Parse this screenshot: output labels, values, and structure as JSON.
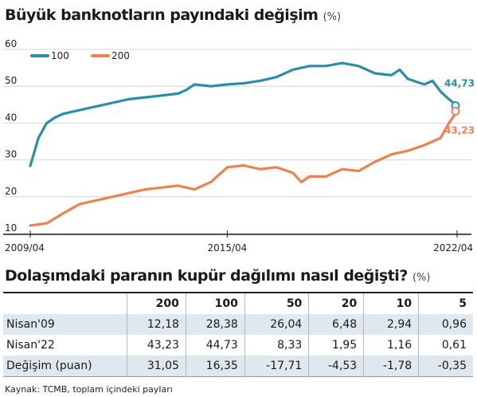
{
  "chart_title": "Büyük banknotların payındaki değişim",
  "chart_unit": "(%)",
  "table_title": "Dolaşımdaki paranın kupür dağılımı nasıl değişti?",
  "table_unit": "(%)",
  "source": "Kaynak: TCMB, toplam içindeki payları",
  "chart_data": {
    "type": "line",
    "title": "Büyük banknotların payındaki değişim",
    "ylim": [
      10,
      60
    ],
    "yticks": [
      "60",
      "50",
      "40",
      "30",
      "20",
      "10"
    ],
    "xlim": [
      "2009/04",
      "2022/04"
    ],
    "xticks": [
      "2009/04",
      "2015/04",
      "2022/04"
    ],
    "legend_placement": "top-left",
    "colors": {
      "100": "#2a8fa5",
      "200": "#f08050"
    },
    "series": [
      {
        "name": "100",
        "end_label": "44,73",
        "points": [
          [
            "2009/04",
            28.4
          ],
          [
            "2009/07",
            36.0
          ],
          [
            "2009/10",
            40.0
          ],
          [
            "2010/01",
            41.5
          ],
          [
            "2010/04",
            42.5
          ],
          [
            "2010/10",
            43.5
          ],
          [
            "2011/04",
            44.5
          ],
          [
            "2011/10",
            45.5
          ],
          [
            "2012/04",
            46.5
          ],
          [
            "2012/10",
            47.0
          ],
          [
            "2013/04",
            47.5
          ],
          [
            "2013/10",
            48.0
          ],
          [
            "2014/01",
            49.0
          ],
          [
            "2014/04",
            50.5
          ],
          [
            "2014/10",
            50.0
          ],
          [
            "2015/04",
            50.5
          ],
          [
            "2015/10",
            50.8
          ],
          [
            "2016/04",
            51.5
          ],
          [
            "2016/10",
            52.5
          ],
          [
            "2017/04",
            54.5
          ],
          [
            "2017/10",
            55.5
          ],
          [
            "2018/04",
            55.5
          ],
          [
            "2018/10",
            56.3
          ],
          [
            "2019/04",
            55.5
          ],
          [
            "2019/10",
            53.5
          ],
          [
            "2020/04",
            53.0
          ],
          [
            "2020/07",
            54.5
          ],
          [
            "2020/10",
            52.0
          ],
          [
            "2021/04",
            50.5
          ],
          [
            "2021/07",
            51.5
          ],
          [
            "2021/10",
            48.5
          ],
          [
            "2022/01",
            46.5
          ],
          [
            "2022/04",
            44.73
          ]
        ]
      },
      {
        "name": "200",
        "end_label": "43,23",
        "points": [
          [
            "2009/04",
            12.18
          ],
          [
            "2009/10",
            12.8
          ],
          [
            "2010/04",
            15.5
          ],
          [
            "2010/10",
            18.0
          ],
          [
            "2011/04",
            19.0
          ],
          [
            "2011/10",
            20.0
          ],
          [
            "2012/04",
            21.0
          ],
          [
            "2012/10",
            22.0
          ],
          [
            "2013/04",
            22.5
          ],
          [
            "2013/10",
            23.0
          ],
          [
            "2014/04",
            22.0
          ],
          [
            "2014/10",
            24.0
          ],
          [
            "2015/01",
            26.0
          ],
          [
            "2015/04",
            28.0
          ],
          [
            "2015/10",
            28.5
          ],
          [
            "2016/04",
            27.5
          ],
          [
            "2016/10",
            28.0
          ],
          [
            "2017/04",
            26.5
          ],
          [
            "2017/07",
            24.0
          ],
          [
            "2017/10",
            25.5
          ],
          [
            "2018/04",
            25.5
          ],
          [
            "2018/10",
            27.5
          ],
          [
            "2019/04",
            27.0
          ],
          [
            "2019/10",
            29.5
          ],
          [
            "2020/04",
            31.5
          ],
          [
            "2020/10",
            32.5
          ],
          [
            "2021/04",
            34.0
          ],
          [
            "2021/10",
            36.0
          ],
          [
            "2022/01",
            40.0
          ],
          [
            "2022/04",
            43.23
          ]
        ]
      }
    ]
  },
  "table": {
    "headers": [
      "",
      "200",
      "100",
      "50",
      "20",
      "10",
      "5"
    ],
    "rows": [
      [
        "Nisan'09",
        "12,18",
        "28,38",
        "26,04",
        "6,48",
        "2,94",
        "0,96"
      ],
      [
        "Nisan'22",
        "43,23",
        "44,73",
        "8,33",
        "1,95",
        "1,16",
        "0,61"
      ],
      [
        "Değişim (puan)",
        "31,05",
        "16,35",
        "-17,71",
        "-4,53",
        "-1,78",
        "-0,35"
      ]
    ]
  }
}
